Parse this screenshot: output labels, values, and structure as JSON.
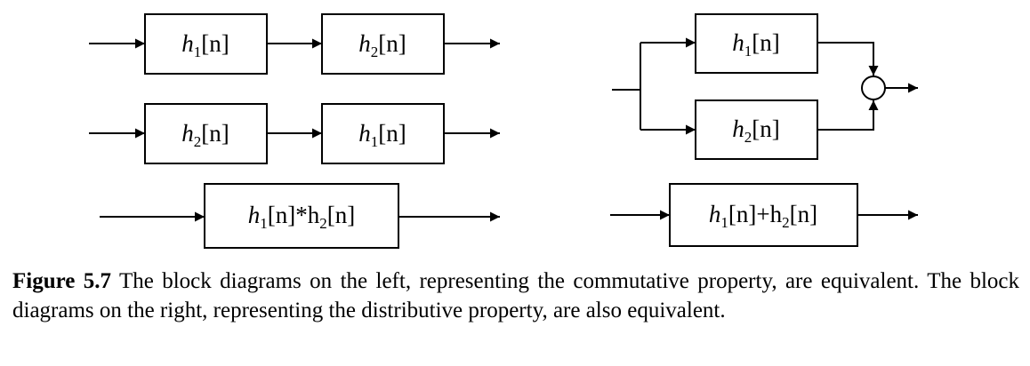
{
  "diagram": {
    "blocks": {
      "b1": {
        "pre": "h",
        "sub": "1",
        "post": "[n]"
      },
      "b2": {
        "pre": "h",
        "sub": "2",
        "post": "[n]"
      },
      "b3": {
        "pre": "h",
        "sub": "2",
        "post": "[n]"
      },
      "b4": {
        "pre": "h",
        "sub": "1",
        "post": "[n]"
      },
      "b5": {
        "p1": "h",
        "s1": "1",
        "p2": "[n]*h",
        "s2": "2",
        "p3": "[n]"
      },
      "b6": {
        "pre": "h",
        "sub": "1",
        "post": "[n]"
      },
      "b7": {
        "pre": "h",
        "sub": "2",
        "post": "[n]"
      },
      "b8": {
        "p1": "h",
        "s1": "1",
        "p2": "[n]+h",
        "s2": "2",
        "p3": "[n]"
      }
    }
  },
  "caption": {
    "label": "Figure 5.7",
    "text": " The block diagrams on the left, representing the commutative property, are equivalent. The block diagrams on the right, representing the distributive property, are also equivalent."
  }
}
